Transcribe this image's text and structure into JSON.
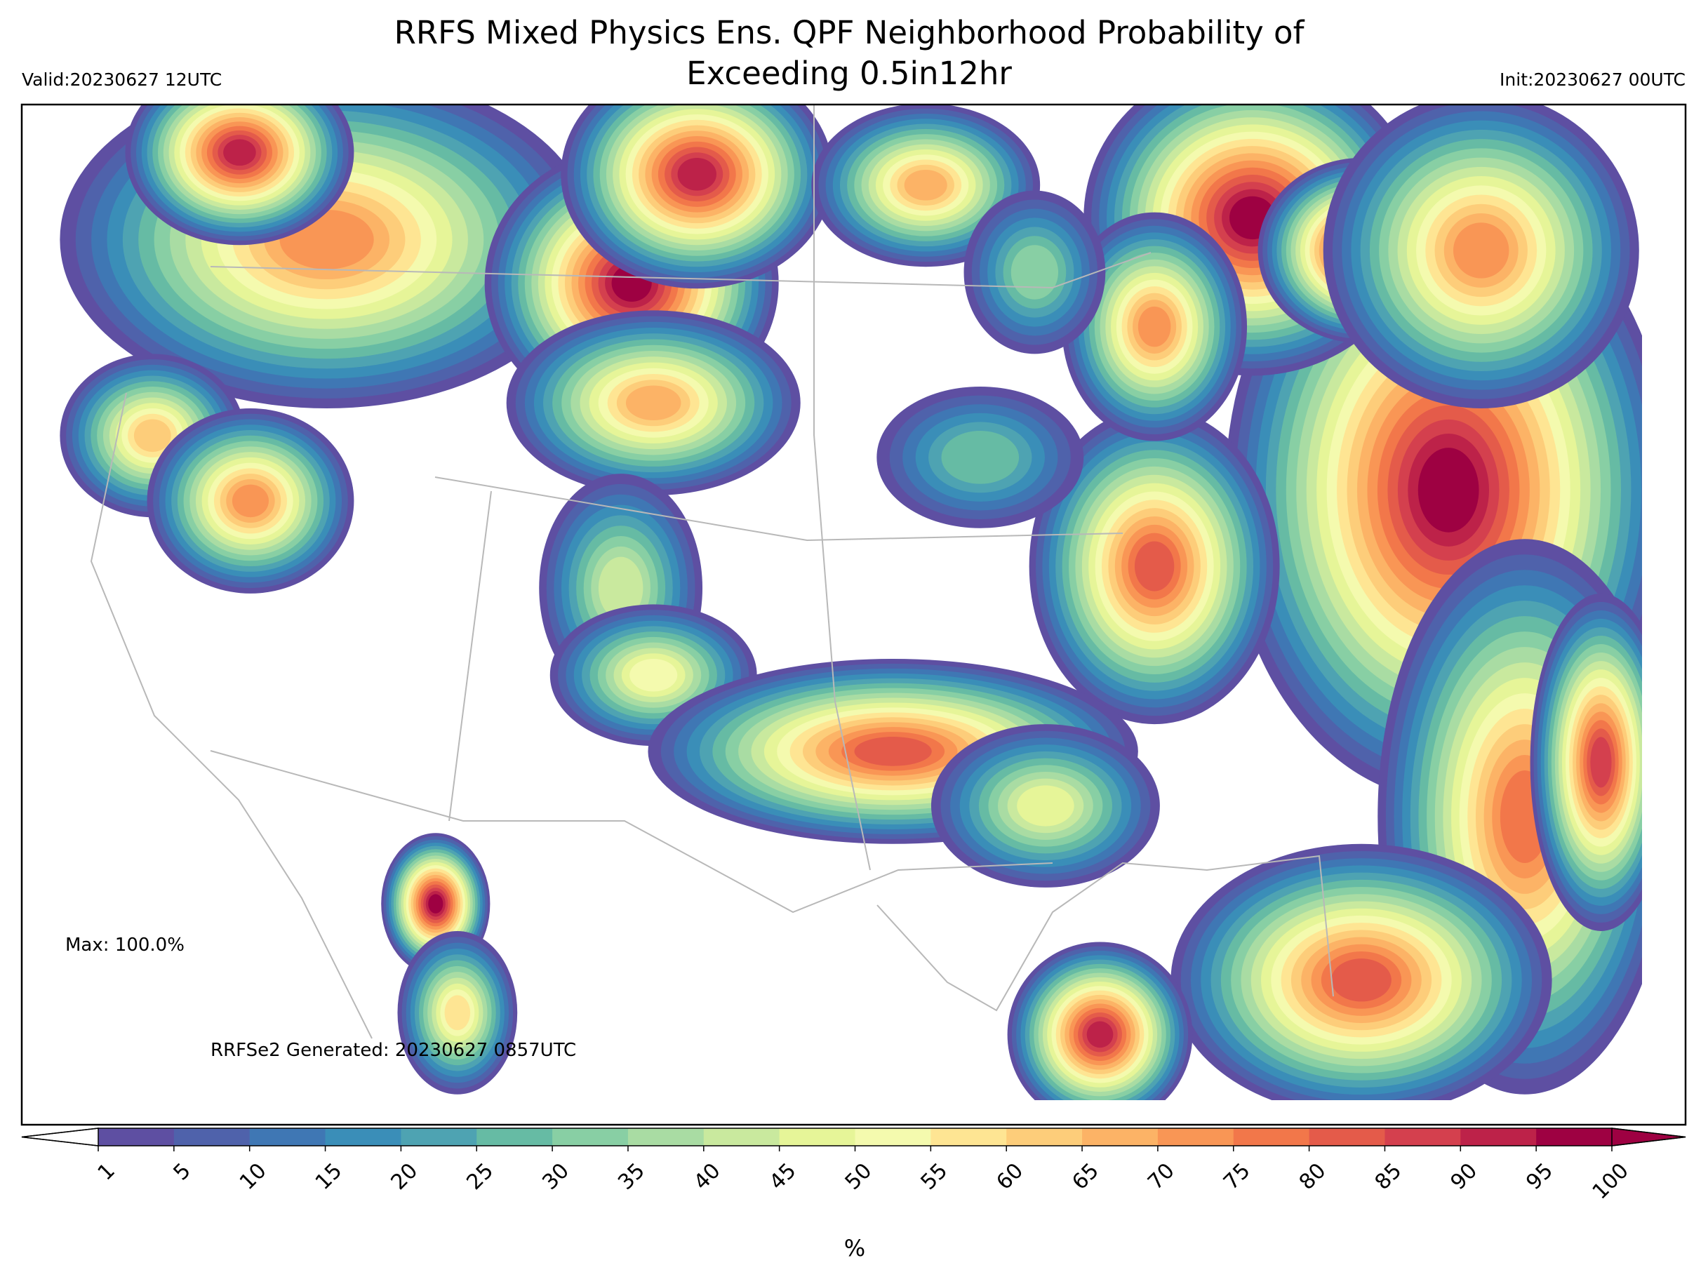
{
  "header": {
    "title_line1": "RRFS Mixed Physics Ens. QPF Neighborhood Probability of",
    "title_line2": "Exceeding 0.5in12hr",
    "valid": "Valid:20230627 12UTC",
    "init": "Init:20230627 00UTC"
  },
  "map": {
    "max_label": "Max: 100.0%",
    "generated": "RRFSe2 Generated: 20230627 0857UTC"
  },
  "colorbar": {
    "label": "%",
    "ticks": [
      1,
      5,
      10,
      15,
      20,
      25,
      30,
      35,
      40,
      45,
      50,
      55,
      60,
      65,
      70,
      75,
      80,
      85,
      90,
      95,
      100
    ],
    "colors": [
      "#5e4fa2",
      "#4f62ab",
      "#3f77b4",
      "#3a8eb8",
      "#4ea3b2",
      "#66bba4",
      "#88cfa4",
      "#a9dca3",
      "#c9e99e",
      "#e6f598",
      "#f4faae",
      "#fee593",
      "#fdcd7a",
      "#fcb366",
      "#f99655",
      "#f2774a",
      "#e45b4a",
      "#d4404e",
      "#bd2249",
      "#9e0142"
    ],
    "under_color": "#ffffff",
    "over_color": "#9e0142"
  }
}
